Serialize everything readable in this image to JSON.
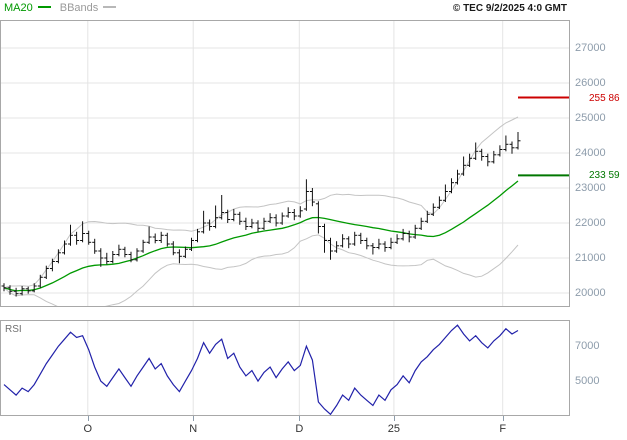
{
  "header": {
    "copyright": "© TEC 9/2/2025 4:0 GMT"
  },
  "legend": {
    "items": [
      {
        "label": "MA20",
        "color": "#009900"
      },
      {
        "label": "BBands",
        "color": "#b8b8b8"
      }
    ]
  },
  "colors": {
    "ma20": "#009900",
    "bbands": "#c4c4c4",
    "bbands_label": "#9a9a9a",
    "candle": "#111111",
    "rsi_line": "#2222aa",
    "level_red": "#cc0000",
    "level_green": "#007700",
    "axis_text": "#8d9cab",
    "month_text": "#333333",
    "grid": "#e4e4e4",
    "border": "#a8a8a8",
    "background": "#ffffff"
  },
  "chart_data": {
    "type": "candlestick",
    "title": "",
    "main": {
      "ylim": [
        19600,
        27800
      ],
      "y_ticks": [
        27000,
        26000,
        25000,
        24000,
        23000,
        22000,
        21000,
        20000
      ],
      "x_ticks": [
        {
          "label": "O",
          "pos": 0.154
        },
        {
          "label": "N",
          "pos": 0.339
        },
        {
          "label": "D",
          "pos": 0.525
        },
        {
          "label": "25",
          "pos": 0.691
        },
        {
          "label": "F",
          "pos": 0.882
        }
      ],
      "overlays": [
        {
          "name": "MA20",
          "period": 20,
          "color": "#009900"
        },
        {
          "name": "BBands",
          "period": 20,
          "stdev": 2,
          "color": "#c4c4c4"
        }
      ],
      "levels": [
        {
          "value": 25586,
          "label": "255 86",
          "color": "#cc0000"
        },
        {
          "value": 23359,
          "label": "233 59",
          "color": "#007700"
        }
      ],
      "candles": [
        [
          20200,
          20280,
          20050,
          20150
        ],
        [
          20150,
          20220,
          19950,
          20050
        ],
        [
          20050,
          20150,
          19900,
          19980
        ],
        [
          19980,
          20200,
          19930,
          20120
        ],
        [
          20120,
          20180,
          19980,
          20060
        ],
        [
          20060,
          20280,
          20020,
          20200
        ],
        [
          20200,
          20520,
          20150,
          20450
        ],
        [
          20450,
          20780,
          20400,
          20700
        ],
        [
          20700,
          20980,
          20620,
          20900
        ],
        [
          20900,
          21250,
          20850,
          21150
        ],
        [
          21150,
          21500,
          21100,
          21400
        ],
        [
          21400,
          21950,
          21350,
          21650
        ],
        [
          21650,
          21750,
          21380,
          21500
        ],
        [
          21500,
          22050,
          21450,
          21700
        ],
        [
          21700,
          21780,
          21380,
          21450
        ],
        [
          21450,
          21550,
          21120,
          21200
        ],
        [
          21200,
          21280,
          20750,
          21000
        ],
        [
          21000,
          21150,
          20820,
          20900
        ],
        [
          20900,
          21200,
          20850,
          21100
        ],
        [
          21100,
          21380,
          21050,
          21250
        ],
        [
          21250,
          21320,
          21020,
          21100
        ],
        [
          21100,
          21180,
          20880,
          20950
        ],
        [
          20950,
          21280,
          20900,
          21200
        ],
        [
          21200,
          21520,
          21150,
          21450
        ],
        [
          21450,
          21900,
          21400,
          21600
        ],
        [
          21600,
          21700,
          21420,
          21500
        ],
        [
          21500,
          21750,
          21430,
          21650
        ],
        [
          21650,
          21720,
          21330,
          21400
        ],
        [
          21400,
          21480,
          21080,
          21150
        ],
        [
          21150,
          21250,
          20850,
          21050
        ],
        [
          21050,
          21330,
          21000,
          21250
        ],
        [
          21250,
          21580,
          21200,
          21500
        ],
        [
          21500,
          21830,
          21450,
          21750
        ],
        [
          21750,
          22350,
          21700,
          22000
        ],
        [
          22000,
          22100,
          21780,
          21900
        ],
        [
          21900,
          22500,
          21850,
          22150
        ],
        [
          22150,
          22800,
          22100,
          22300
        ],
        [
          22300,
          22380,
          22000,
          22100
        ],
        [
          22100,
          22400,
          22050,
          22250
        ],
        [
          22250,
          22320,
          21950,
          22050
        ],
        [
          22050,
          22150,
          21800,
          21900
        ],
        [
          21900,
          22120,
          21850,
          22000
        ],
        [
          22000,
          22080,
          21750,
          21850
        ],
        [
          21850,
          22150,
          21800,
          22050
        ],
        [
          22050,
          22280,
          22000,
          22150
        ],
        [
          22150,
          22250,
          21900,
          22000
        ],
        [
          22000,
          22300,
          21950,
          22200
        ],
        [
          22200,
          22450,
          22150,
          22300
        ],
        [
          22300,
          22400,
          22080,
          22200
        ],
        [
          22200,
          22480,
          22150,
          22350
        ],
        [
          22400,
          23250,
          22350,
          22900
        ],
        [
          22900,
          23000,
          22480,
          22600
        ],
        [
          22550,
          22620,
          21700,
          21900
        ],
        [
          21900,
          21980,
          21150,
          21500
        ],
        [
          21500,
          21580,
          20950,
          21200
        ],
        [
          21200,
          21480,
          21150,
          21350
        ],
        [
          21350,
          21680,
          21300,
          21550
        ],
        [
          21550,
          21620,
          21280,
          21400
        ],
        [
          21400,
          21750,
          21350,
          21650
        ],
        [
          21650,
          21720,
          21400,
          21500
        ],
        [
          21500,
          21580,
          21250,
          21350
        ],
        [
          21350,
          21430,
          21100,
          21300
        ],
        [
          21300,
          21550,
          21250,
          21400
        ],
        [
          21400,
          21480,
          21180,
          21300
        ],
        [
          21300,
          21580,
          21250,
          21450
        ],
        [
          21450,
          21680,
          21400,
          21550
        ],
        [
          21550,
          21830,
          21500,
          21700
        ],
        [
          21700,
          21780,
          21450,
          21600
        ],
        [
          21600,
          21950,
          21550,
          21850
        ],
        [
          21850,
          22150,
          21800,
          22050
        ],
        [
          22050,
          22350,
          22000,
          22250
        ],
        [
          22250,
          22560,
          22200,
          22450
        ],
        [
          22450,
          22760,
          22400,
          22650
        ],
        [
          22650,
          23100,
          22600,
          22900
        ],
        [
          22900,
          23280,
          22850,
          23150
        ],
        [
          23150,
          23520,
          23100,
          23400
        ],
        [
          23400,
          23900,
          23350,
          23650
        ],
        [
          23650,
          23980,
          23600,
          23850
        ],
        [
          23850,
          24300,
          23800,
          24050
        ],
        [
          24050,
          24120,
          23780,
          23900
        ],
        [
          23900,
          23980,
          23620,
          23750
        ],
        [
          23750,
          24060,
          23700,
          23950
        ],
        [
          23950,
          24220,
          23900,
          24100
        ],
        [
          24100,
          24500,
          24050,
          24250
        ],
        [
          24250,
          24330,
          23980,
          24150
        ],
        [
          24150,
          24600,
          24100,
          24350
        ]
      ]
    },
    "rsi": {
      "label": "RSI",
      "type": "line",
      "ylim": [
        30,
        85
      ],
      "y_ticks": [
        {
          "value": 70,
          "label": "7000"
        },
        {
          "value": 50,
          "label": "5000"
        }
      ],
      "values": [
        48,
        45,
        42,
        46,
        44,
        48,
        54,
        60,
        65,
        70,
        74,
        78,
        75,
        76,
        68,
        58,
        50,
        47,
        52,
        57,
        52,
        47,
        53,
        58,
        63,
        57,
        60,
        53,
        48,
        44,
        50,
        56,
        63,
        72,
        66,
        71,
        74,
        63,
        66,
        58,
        53,
        56,
        50,
        55,
        58,
        52,
        57,
        61,
        56,
        59,
        70,
        62,
        38,
        34,
        31,
        36,
        42,
        39,
        46,
        42,
        39,
        36,
        42,
        39,
        45,
        48,
        53,
        49,
        56,
        61,
        64,
        68,
        71,
        75,
        79,
        82,
        77,
        73,
        76,
        72,
        69,
        73,
        76,
        80,
        77,
        79
      ]
    }
  }
}
